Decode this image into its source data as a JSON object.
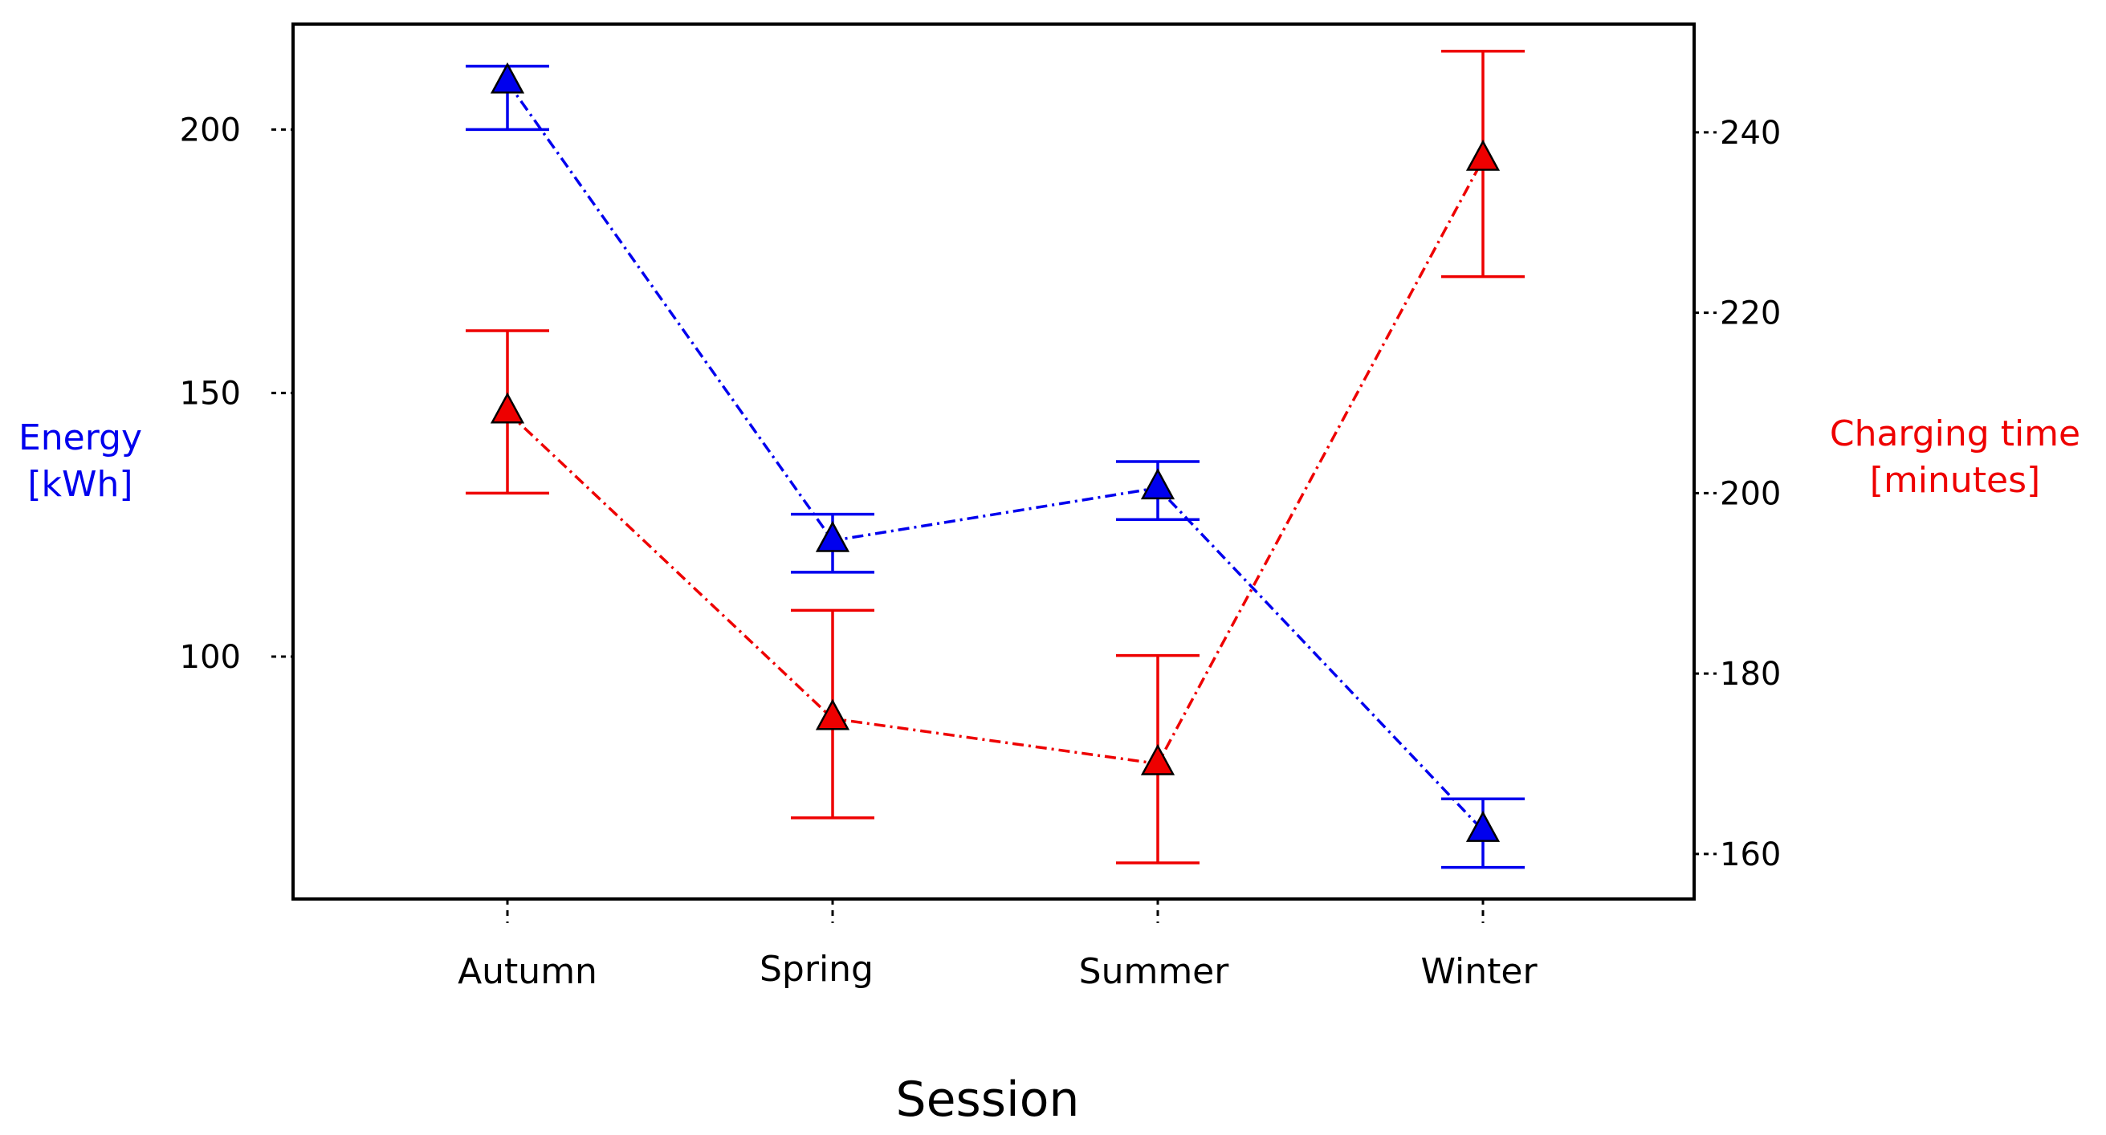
{
  "chart_data": {
    "type": "line",
    "xlabel": "Session",
    "categories": [
      "Autumn",
      "Spring",
      "Summer",
      "Winter"
    ],
    "left_axis": {
      "label_lines": [
        "Energy",
        "[kWh]"
      ],
      "color": "#0000ee",
      "ylim": [
        54,
        220
      ],
      "ticks": [
        100,
        150,
        200
      ]
    },
    "right_axis": {
      "label_lines": [
        "Charging time",
        "[minutes]"
      ],
      "color": "#ee0000",
      "ylim": [
        155,
        252
      ],
      "ticks": [
        160,
        180,
        200,
        220,
        240
      ]
    },
    "series": [
      {
        "name": "Energy",
        "axis": "left",
        "color": "#0000ee",
        "values": [
          209,
          122,
          132,
          67
        ],
        "lower": [
          200,
          116,
          126,
          60
        ],
        "upper": [
          212,
          127,
          137,
          73
        ]
      },
      {
        "name": "Charging time",
        "axis": "right",
        "color": "#ee0000",
        "values": [
          209,
          175,
          170,
          237
        ],
        "lower": [
          200,
          164,
          159,
          224
        ],
        "upper": [
          218,
          187,
          182,
          249
        ]
      }
    ]
  }
}
